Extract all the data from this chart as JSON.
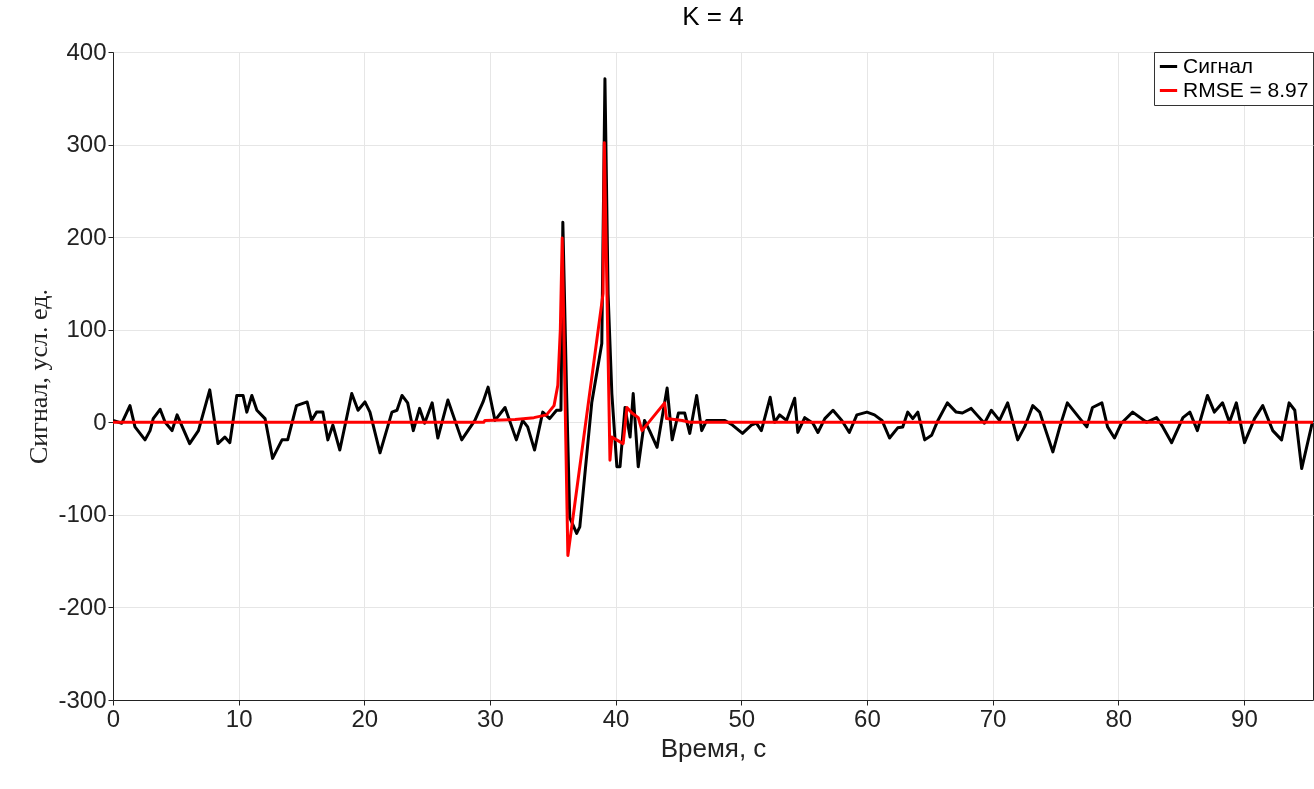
{
  "chart_data": {
    "type": "line",
    "title": "K = 4",
    "xlabel": "Время, с",
    "ylabel": "Сигнал, усл. ед.",
    "xlim": [
      0,
      95.5
    ],
    "xticks": [
      0,
      10,
      20,
      30,
      40,
      50,
      60,
      70,
      80,
      90
    ],
    "ylim": [
      -300,
      400
    ],
    "yticks": [
      -300,
      -200,
      -100,
      0,
      100,
      200,
      300,
      400
    ],
    "grid": true,
    "legend": "top right",
    "line_style": "solid",
    "series": [
      {
        "name": "Сигнал",
        "color": "#000000",
        "x": [
          0,
          0.7,
          1.35,
          1.75,
          2.55,
          2.95,
          3.2,
          3.75,
          4.15,
          4.7,
          5.1,
          6.1,
          6.8,
          7.7,
          8.35,
          8.9,
          9.3,
          9.85,
          10.35,
          10.65,
          11.05,
          11.45,
          12.1,
          12.7,
          13.45,
          13.9,
          14.6,
          15.45,
          15.8,
          16.2,
          16.7,
          17.1,
          17.5,
          18.05,
          19.0,
          19.5,
          20.05,
          20.45,
          21.25,
          22.2,
          22.6,
          23.0,
          23.45,
          23.9,
          24.4,
          24.8,
          25.4,
          25.85,
          26.65,
          27.75,
          28.8,
          29.45,
          29.85,
          30.4,
          31.2,
          32.1,
          32.6,
          33.0,
          33.55,
          34.2,
          34.75,
          35.3,
          35.65,
          35.8,
          36.1,
          36.35,
          36.9,
          37.15,
          38.1,
          38.9,
          39.15,
          39.4,
          39.7,
          40.1,
          40.35,
          40.75,
          41.15,
          41.4,
          41.8,
          42.3,
          42.7,
          43.3,
          44.1,
          44.5,
          45.0,
          45.5,
          45.9,
          46.45,
          46.85,
          47.25,
          48.05,
          48.7,
          49.3,
          50.1,
          50.8,
          51.2,
          51.6,
          52.3,
          52.65,
          53.05,
          53.6,
          54.25,
          54.5,
          55.05,
          55.7,
          56.1,
          56.65,
          57.3,
          58.0,
          58.6,
          59.2,
          60.0,
          60.6,
          61.2,
          61.8,
          62.45,
          62.85,
          63.25,
          63.65,
          64.05,
          64.6,
          65.15,
          65.65,
          66.4,
          67.1,
          67.6,
          68.3,
          68.75,
          69.35,
          69.9,
          70.55,
          71.2,
          72.0,
          72.55,
          73.2,
          73.75,
          74.8,
          75.35,
          75.95,
          76.95,
          77.5,
          77.95,
          78.7,
          79.15,
          79.7,
          80.25,
          81.15,
          82.25,
          83.05,
          83.55,
          84.25,
          85.15,
          85.7,
          86.3,
          87.1,
          87.65,
          88.3,
          88.85,
          89.4,
          90.05,
          90.85,
          91.5,
          92.3,
          93.0,
          93.6,
          94.05,
          94.6,
          95.45
        ],
        "values": [
          2,
          -1,
          18,
          -5,
          -19,
          -9,
          4,
          14,
          0,
          -9,
          8,
          -23,
          -9,
          35,
          -23,
          -16,
          -22,
          29,
          29,
          11,
          29,
          13,
          4,
          -39,
          -19,
          -19,
          18,
          22,
          2,
          11,
          11,
          -19,
          -3,
          -30,
          31,
          13,
          22,
          11,
          -33,
          11,
          13,
          29,
          21,
          -9,
          15,
          -1,
          21,
          -17,
          24,
          -19,
          2,
          22,
          38,
          2,
          16,
          -19,
          2,
          -5,
          -30,
          11,
          4,
          13,
          13,
          216,
          31,
          -103,
          -120,
          -113,
          21,
          85,
          371,
          139,
          31,
          -48,
          -48,
          16,
          -16,
          31,
          -48,
          2,
          -9,
          -27,
          37,
          -19,
          10,
          10,
          -12,
          29,
          -9,
          2,
          2,
          2,
          -3,
          -12,
          -3,
          -1,
          -9,
          27,
          0,
          8,
          2,
          26,
          -11,
          5,
          -1,
          -11,
          4,
          13,
          2,
          -11,
          8,
          11,
          8,
          2,
          -17,
          -6,
          -5,
          11,
          4,
          11,
          -19,
          -14,
          2,
          21,
          11,
          10,
          15,
          8,
          -1,
          13,
          2,
          21,
          -19,
          -5,
          18,
          11,
          -32,
          -5,
          21,
          4,
          -5,
          16,
          21,
          -5,
          -17,
          -1,
          11,
          0,
          5,
          -5,
          -22,
          5,
          11,
          -9,
          29,
          11,
          21,
          0,
          21,
          -22,
          4,
          18,
          -9,
          -19,
          21,
          13,
          -50,
          0
        ]
      },
      {
        "name": "RMSE = 8.97",
        "color": "#ff0000",
        "x": [
          0,
          29.5,
          29.6,
          32,
          33.5,
          34.5,
          35.1,
          35.4,
          35.6,
          35.75,
          36.2,
          39.0,
          39.1,
          39.55,
          39.7,
          40.6,
          40.9,
          41.3,
          41.8,
          42.1,
          43.9,
          44.05,
          45.3,
          45.9,
          95.5
        ],
        "values": [
          0,
          0,
          2,
          3,
          5,
          8,
          18,
          40,
          100,
          199,
          -144,
          139,
          302,
          -41,
          -16,
          -23,
          16,
          10,
          5,
          -9,
          21,
          4,
          2,
          0,
          0
        ]
      }
    ]
  }
}
